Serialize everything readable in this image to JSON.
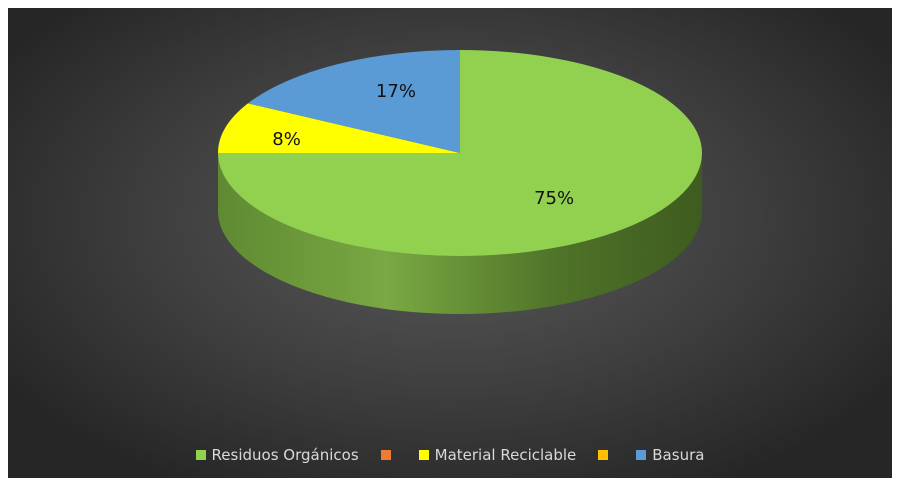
{
  "chart_data": {
    "type": "pie",
    "title": "",
    "series": [
      {
        "name": "Residuos Orgánicos",
        "value": 75,
        "label": "75%",
        "color": "#92d050"
      },
      {
        "name": "Material Reciclable",
        "value": 8,
        "label": "8%",
        "color": "#ffff00"
      },
      {
        "name": "Basura",
        "value": 17,
        "label": "17%",
        "color": "#5b9bd5"
      }
    ],
    "legend": {
      "position": "bottom",
      "entries": [
        {
          "name": "Residuos Orgánicos",
          "color": "#92d050"
        },
        {
          "name": "",
          "color": "#ed7d31"
        },
        {
          "name": "Material Reciclable",
          "color": "#ffff00"
        },
        {
          "name": "",
          "color": "#ffc000"
        },
        {
          "name": "Basura",
          "color": "#5b9bd5"
        }
      ]
    },
    "style": "3d-pie",
    "background": "#404040"
  }
}
